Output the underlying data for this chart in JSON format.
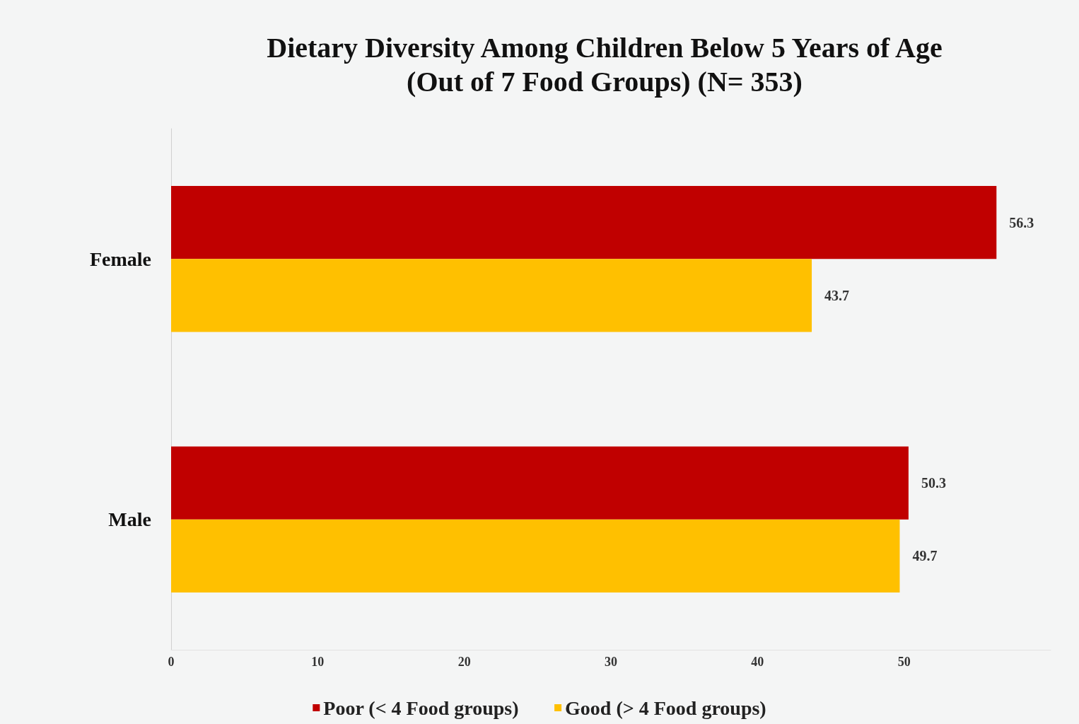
{
  "chart_data": {
    "type": "bar",
    "orientation": "horizontal",
    "title": "Dietary Diversity Among Children Below 5 Years of Age\n(Out of 7 Food Groups) (N= 353)",
    "categories": [
      "Female",
      "Male"
    ],
    "series": [
      {
        "name": "Poor (< 4 Food groups)",
        "color": "#c00000",
        "values": [
          56.3,
          50.3
        ]
      },
      {
        "name": "Good (> 4 Food groups)",
        "color": "#ffc000",
        "values": [
          43.7,
          49.7
        ]
      }
    ],
    "xlim": [
      0,
      60
    ],
    "xticks": [
      0,
      10,
      20,
      30,
      40,
      50
    ],
    "grid": false,
    "legend": "bottom",
    "data_labels": true
  }
}
